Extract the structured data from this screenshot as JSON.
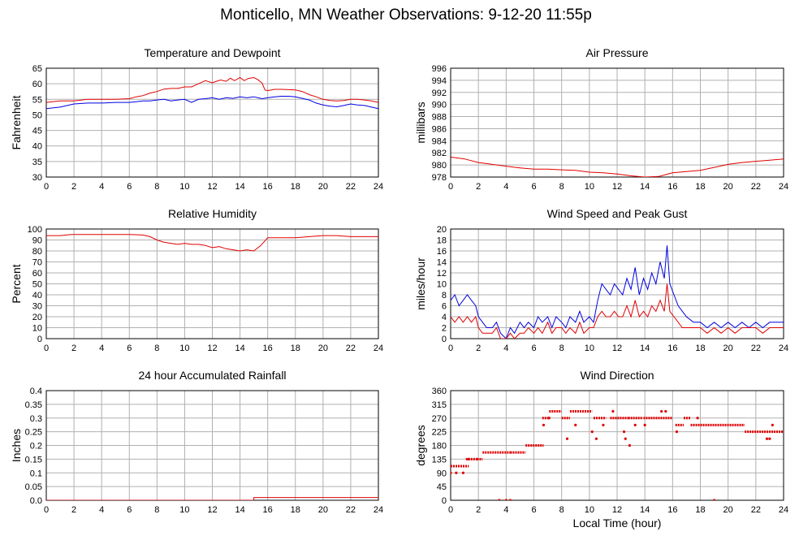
{
  "title": "Monticello, MN Weather Observations: 9-12-20 11:55p",
  "shared_xlabel": "Local Time (hour)",
  "chart_data": [
    {
      "id": "temp",
      "type": "line",
      "title": "Temperature and Dewpoint",
      "ylabel": "Fahrenheit",
      "xlim": [
        0,
        24
      ],
      "ylim": [
        30,
        65
      ],
      "xticks": [
        0,
        2,
        4,
        6,
        8,
        10,
        12,
        14,
        16,
        18,
        20,
        22,
        24
      ],
      "yticks": [
        30,
        35,
        40,
        45,
        50,
        55,
        60,
        65
      ],
      "ytick_labels": [
        "30",
        "35",
        "40",
        "45",
        "50",
        "55",
        "60",
        "65"
      ],
      "grid": true,
      "series": [
        {
          "color": "#e00000",
          "x": [
            0,
            1,
            2,
            3,
            4,
            5,
            6,
            6.5,
            7,
            7.5,
            8,
            8.5,
            9,
            9.5,
            10,
            10.5,
            11,
            11.5,
            12,
            12.3,
            12.6,
            13,
            13.3,
            13.6,
            14,
            14.3,
            14.6,
            15,
            15.3,
            15.6,
            15.8,
            16,
            16.5,
            17,
            17.5,
            18,
            18.5,
            19,
            19.5,
            20,
            20.5,
            21,
            21.5,
            22,
            22.5,
            23,
            23.5,
            24
          ],
          "y": [
            54,
            54.5,
            54.5,
            55,
            55,
            55,
            55.2,
            55.8,
            56.2,
            57,
            57.5,
            58.3,
            58.5,
            58.5,
            59,
            59,
            60,
            61,
            60.3,
            60.8,
            61.2,
            60.8,
            61.8,
            61,
            62,
            61,
            61.7,
            62,
            61.3,
            60.2,
            58,
            57.8,
            58.2,
            58.2,
            58.1,
            58,
            57.5,
            56.5,
            55.8,
            55,
            54.6,
            54.5,
            54.6,
            55,
            55,
            54.8,
            54.5,
            54
          ]
        },
        {
          "color": "#0000e0",
          "x": [
            0,
            1,
            2,
            3,
            4,
            5,
            6,
            6.5,
            7,
            7.5,
            8,
            8.5,
            9,
            9.5,
            10,
            10.5,
            11,
            11.5,
            12,
            12.5,
            13,
            13.5,
            14,
            14.5,
            15,
            15.3,
            15.6,
            16,
            16.5,
            17,
            17.5,
            18,
            18.5,
            19,
            19.5,
            20,
            20.5,
            21,
            21.5,
            22,
            22.5,
            23,
            23.5,
            24
          ],
          "y": [
            52,
            52.5,
            53.5,
            53.8,
            53.8,
            54,
            54,
            54.2,
            54.5,
            54.5,
            54.8,
            55,
            54.5,
            54.8,
            55,
            54,
            55,
            55.2,
            55.5,
            55,
            55.5,
            55.3,
            55.8,
            55.5,
            55.8,
            55.5,
            55.2,
            55.5,
            55.8,
            56,
            56,
            55.8,
            55.3,
            54.8,
            53.8,
            53.2,
            52.8,
            52.6,
            53,
            53.5,
            53.2,
            53,
            52.5,
            52
          ]
        }
      ]
    },
    {
      "id": "pressure",
      "type": "line",
      "title": "Air Pressure",
      "ylabel": "millibars",
      "xlim": [
        0,
        24
      ],
      "ylim": [
        978,
        996
      ],
      "xticks": [
        0,
        2,
        4,
        6,
        8,
        10,
        12,
        14,
        16,
        18,
        20,
        22,
        24
      ],
      "yticks": [
        978,
        980,
        982,
        984,
        986,
        988,
        990,
        992,
        994,
        996
      ],
      "ytick_labels": [
        "978",
        "980",
        "982",
        "984",
        "986",
        "988",
        "990",
        "992",
        "994",
        "996"
      ],
      "grid": true,
      "series": [
        {
          "color": "#e00000",
          "x": [
            0,
            1,
            2,
            3,
            4,
            5,
            6,
            7,
            8,
            9,
            10,
            11,
            12,
            13,
            14,
            15,
            15.5,
            16,
            17,
            18,
            19,
            20,
            21,
            22,
            23,
            24
          ],
          "y": [
            981.3,
            981,
            980.4,
            980.1,
            979.8,
            979.5,
            979.3,
            979.3,
            979.2,
            979.1,
            978.8,
            978.7,
            978.5,
            978.2,
            978,
            978.1,
            978.4,
            978.7,
            978.9,
            979.1,
            979.6,
            980.1,
            980.4,
            980.6,
            980.8,
            981
          ]
        }
      ]
    },
    {
      "id": "humidity",
      "type": "line",
      "title": "Relative Humidity",
      "ylabel": "Percent",
      "xlim": [
        0,
        24
      ],
      "ylim": [
        0,
        100
      ],
      "xticks": [
        0,
        2,
        4,
        6,
        8,
        10,
        12,
        14,
        16,
        18,
        20,
        22,
        24
      ],
      "yticks": [
        0,
        10,
        20,
        30,
        40,
        50,
        60,
        70,
        80,
        90,
        100
      ],
      "ytick_labels": [
        "0",
        "10",
        "20",
        "30",
        "40",
        "50",
        "60",
        "70",
        "80",
        "90",
        "100"
      ],
      "grid": true,
      "series": [
        {
          "color": "#e00000",
          "x": [
            0,
            1,
            1.8,
            3,
            4,
            5,
            6,
            7,
            7.5,
            8,
            8.5,
            9,
            9.5,
            10,
            10.5,
            11,
            11.5,
            12,
            12.5,
            13,
            13.5,
            14,
            14.5,
            15,
            15.5,
            16,
            17,
            18,
            19,
            20,
            21,
            22,
            23,
            24
          ],
          "y": [
            94,
            94,
            95,
            95,
            95,
            95,
            95,
            94.5,
            93,
            90,
            88,
            87,
            86,
            87,
            86,
            86,
            85,
            83,
            84,
            82,
            81,
            80,
            81,
            80,
            85,
            92,
            92,
            92,
            93,
            94,
            94,
            93,
            93,
            93
          ]
        }
      ]
    },
    {
      "id": "wind",
      "type": "line",
      "title": "Wind Speed and Peak Gust",
      "ylabel": "miles/hour",
      "xlim": [
        0,
        24
      ],
      "ylim": [
        0,
        20
      ],
      "xticks": [
        0,
        2,
        4,
        6,
        8,
        10,
        12,
        14,
        16,
        18,
        20,
        22,
        24
      ],
      "yticks": [
        0,
        2,
        4,
        6,
        8,
        10,
        12,
        14,
        16,
        18,
        20
      ],
      "ytick_labels": [
        "0",
        "2",
        "4",
        "6",
        "8",
        "10",
        "12",
        "14",
        "16",
        "18",
        "20"
      ],
      "grid": true,
      "series": [
        {
          "color": "#0000e0",
          "x": [
            0,
            0.3,
            0.6,
            0.9,
            1.2,
            1.5,
            1.8,
            2,
            2.3,
            2.6,
            3,
            3.3,
            3.6,
            4,
            4.3,
            4.6,
            5,
            5.3,
            5.6,
            6,
            6.3,
            6.6,
            7,
            7.3,
            7.6,
            8,
            8.3,
            8.6,
            9,
            9.3,
            9.6,
            10,
            10.3,
            10.6,
            10.9,
            11.2,
            11.5,
            11.8,
            12.1,
            12.4,
            12.7,
            13,
            13.3,
            13.6,
            13.9,
            14.2,
            14.5,
            14.8,
            15.1,
            15.4,
            15.6,
            15.8,
            16.1,
            16.4,
            16.7,
            17,
            17.5,
            18,
            18.5,
            19,
            19.5,
            20,
            20.5,
            21,
            21.5,
            22,
            22.5,
            23,
            23.5,
            24
          ],
          "y": [
            7,
            8,
            6,
            7,
            8,
            7,
            6,
            4,
            3,
            2,
            2,
            3,
            1,
            0,
            2,
            1,
            3,
            2,
            3,
            2,
            4,
            3,
            4,
            2,
            4,
            3,
            2,
            4,
            3,
            5,
            3,
            4,
            3,
            7,
            10,
            9,
            8,
            10,
            9,
            8,
            11,
            9,
            13,
            8,
            11,
            9,
            12,
            10,
            14,
            11,
            17,
            10,
            8,
            6,
            5,
            4,
            3,
            3,
            2,
            3,
            2,
            3,
            2,
            3,
            2,
            3,
            2,
            3,
            3,
            3
          ]
        },
        {
          "color": "#e00000",
          "x": [
            0,
            0.3,
            0.6,
            0.9,
            1.2,
            1.5,
            1.8,
            2,
            2.3,
            2.6,
            3,
            3.3,
            3.6,
            4,
            4.3,
            4.6,
            5,
            5.3,
            5.6,
            6,
            6.3,
            6.6,
            7,
            7.3,
            7.6,
            8,
            8.3,
            8.6,
            9,
            9.3,
            9.6,
            10,
            10.3,
            10.6,
            10.9,
            11.2,
            11.5,
            11.8,
            12.1,
            12.4,
            12.7,
            13,
            13.3,
            13.6,
            13.9,
            14.2,
            14.5,
            14.8,
            15.1,
            15.4,
            15.6,
            15.8,
            16.1,
            16.4,
            16.7,
            17,
            17.5,
            18,
            18.5,
            19,
            19.5,
            20,
            20.5,
            21,
            21.5,
            22,
            22.5,
            23,
            23.5,
            24
          ],
          "y": [
            4,
            3,
            4,
            3,
            4,
            3,
            4,
            2,
            1,
            1,
            1,
            2,
            0,
            0,
            1,
            0,
            1,
            1,
            2,
            1,
            2,
            1,
            3,
            1,
            2,
            2,
            1,
            2,
            1,
            3,
            1,
            2,
            2,
            4,
            5,
            4,
            4,
            5,
            4,
            4,
            6,
            4,
            7,
            4,
            5,
            4,
            6,
            5,
            7,
            5,
            10,
            5,
            4,
            3,
            2,
            2,
            2,
            2,
            1,
            2,
            1,
            2,
            1,
            2,
            2,
            2,
            1,
            2,
            2,
            2
          ]
        }
      ]
    },
    {
      "id": "rain",
      "type": "line",
      "title": "24 hour Accumulated Rainfall",
      "ylabel": "Inches",
      "xlim": [
        0,
        24
      ],
      "ylim": [
        0,
        0.4
      ],
      "xticks": [
        0,
        2,
        4,
        6,
        8,
        10,
        12,
        14,
        16,
        18,
        20,
        22,
        24
      ],
      "yticks": [
        0,
        0.05,
        0.1,
        0.15,
        0.2,
        0.25,
        0.3,
        0.35,
        0.4
      ],
      "ytick_labels": [
        "0.0",
        "0.05",
        "0.1",
        "0.15",
        "0.2",
        "0.25",
        "0.3",
        "0.35",
        "0.4"
      ],
      "grid": true,
      "series": [
        {
          "color": "#e00000",
          "x": [
            0,
            15,
            15,
            24
          ],
          "y": [
            0,
            0,
            0.01,
            0.01
          ]
        }
      ]
    },
    {
      "id": "direction",
      "type": "scatter",
      "title": "Wind Direction",
      "ylabel": "degrees",
      "xlabel": "Local Time (hour)",
      "xlim": [
        0,
        24
      ],
      "ylim": [
        0,
        360
      ],
      "xticks": [
        0,
        2,
        4,
        6,
        8,
        10,
        12,
        14,
        16,
        18,
        20,
        22,
        24
      ],
      "yticks": [
        0,
        45,
        90,
        135,
        180,
        225,
        270,
        315,
        360
      ],
      "ytick_labels": [
        "0",
        "45",
        "90",
        "135",
        "180",
        "225",
        "270",
        "315",
        "360"
      ],
      "grid": true,
      "segments_note": "horizontal runs of dense dots",
      "runs": [
        [
          0,
          1.3,
          112
        ],
        [
          1.1,
          1.9,
          135
        ],
        [
          1.9,
          2.3,
          135
        ],
        [
          2.3,
          4.3,
          157
        ],
        [
          4.3,
          5.4,
          157
        ],
        [
          5.4,
          6.7,
          180
        ],
        [
          6.6,
          7.1,
          270
        ],
        [
          7.1,
          8.0,
          292
        ],
        [
          8.0,
          8.6,
          270
        ],
        [
          8.6,
          10.2,
          292
        ],
        [
          10.3,
          11.2,
          270
        ],
        [
          11.5,
          12.8,
          270
        ],
        [
          12.8,
          13.8,
          270
        ],
        [
          13.9,
          16.0,
          270
        ],
        [
          16.2,
          16.8,
          247
        ],
        [
          16.8,
          17.3,
          270
        ],
        [
          17.3,
          21.2,
          247
        ],
        [
          21.2,
          22.6,
          225
        ],
        [
          22.6,
          23.3,
          225
        ],
        [
          23.3,
          24,
          225
        ]
      ],
      "points": [
        [
          0,
          90
        ],
        [
          0.4,
          90
        ],
        [
          0.9,
          90
        ],
        [
          1.3,
          135
        ],
        [
          3.5,
          0
        ],
        [
          4.0,
          0
        ],
        [
          4.3,
          0
        ],
        [
          6.7,
          247
        ],
        [
          7.1,
          270
        ],
        [
          8.4,
          202
        ],
        [
          9.0,
          247
        ],
        [
          10.2,
          225
        ],
        [
          10.5,
          202
        ],
        [
          11.0,
          247
        ],
        [
          11.7,
          292
        ],
        [
          12.5,
          225
        ],
        [
          12.6,
          202
        ],
        [
          12.9,
          180
        ],
        [
          13.3,
          247
        ],
        [
          14.0,
          247
        ],
        [
          15.2,
          292
        ],
        [
          15.5,
          292
        ],
        [
          16.3,
          225
        ],
        [
          17.8,
          270
        ],
        [
          19.0,
          0
        ],
        [
          22.8,
          202
        ],
        [
          23.2,
          247
        ],
        [
          23.0,
          202
        ]
      ],
      "color": "#e00000"
    }
  ]
}
